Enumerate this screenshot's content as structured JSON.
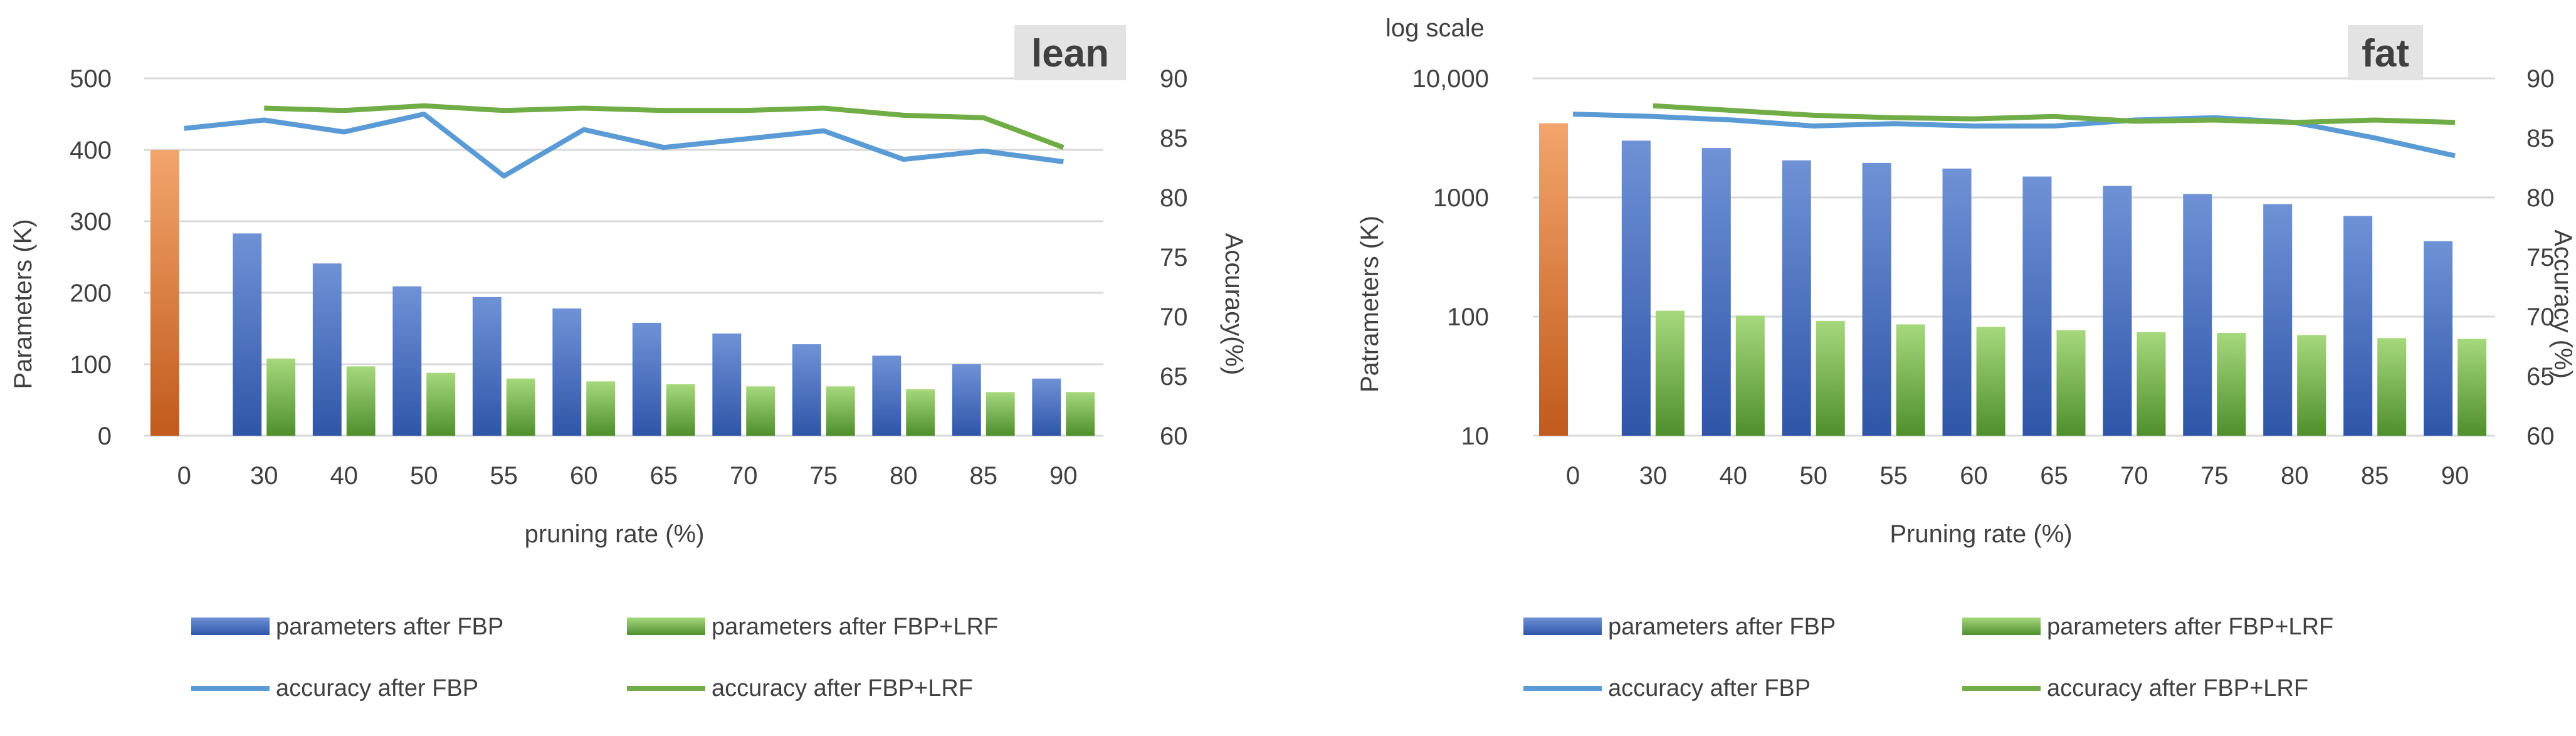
{
  "colors": {
    "fbp_bar_top": "#6f92d6",
    "fbp_bar_bottom": "#2f55a8",
    "lrf_bar_top": "#a6d87d",
    "lrf_bar_bottom": "#4f8f2c",
    "base_bar_top": "#f3a56c",
    "base_bar_bottom": "#c15a1c",
    "fbp_line": "#5b9bd5",
    "lrf_line": "#70ad47",
    "grid": "#d9d9d9",
    "text": "#404040",
    "tag_bg": "#e3e3e3"
  },
  "legend": {
    "params_fbp": "parameters after FBP",
    "params_lrf": "parameters after FBP+LRF",
    "acc_fbp": "accuracy after FBP",
    "acc_lrf": "accuracy after FBP+LRF"
  },
  "chart_data": [
    {
      "type": "bar",
      "combo_with": "line",
      "tag": "lean",
      "scale_note": "",
      "xlabel": "pruning rate (%)",
      "ylabel": "Parameters (K)",
      "y2label": "Accuracy(%)",
      "ylim": [
        0,
        500
      ],
      "y2lim": [
        60,
        90
      ],
      "yticks": [
        "0",
        "100",
        "200",
        "300",
        "400",
        "500"
      ],
      "y2ticks": [
        "60",
        "65",
        "70",
        "75",
        "80",
        "85",
        "90"
      ],
      "yscale": "linear",
      "grid": true,
      "categories": [
        "0",
        "30",
        "40",
        "50",
        "55",
        "60",
        "65",
        "70",
        "75",
        "80",
        "85",
        "90"
      ],
      "base_value": 400,
      "bars_fbp": [
        null,
        283,
        241,
        209,
        194,
        178,
        158,
        143,
        128,
        112,
        100,
        80
      ],
      "bars_lrf": [
        null,
        108,
        97,
        88,
        80,
        76,
        72,
        69,
        69,
        65,
        61,
        61
      ],
      "acc_fbp": [
        85.8,
        86.5,
        85.5,
        87.0,
        81.8,
        85.7,
        84.2,
        84.9,
        85.6,
        83.2,
        83.9,
        83.0
      ],
      "acc_lrf": [
        null,
        87.5,
        87.3,
        87.7,
        87.3,
        87.5,
        87.3,
        87.3,
        87.5,
        86.9,
        86.7,
        84.2
      ]
    },
    {
      "type": "bar",
      "combo_with": "line",
      "tag": "fat",
      "scale_note": "log scale",
      "xlabel": "Pruning rate (%)",
      "ylabel": "Patrameters (K)",
      "y2label": "Accuracy (%)",
      "ylim": [
        10,
        10000
      ],
      "y2lim": [
        60,
        90
      ],
      "yticks": [
        "10",
        "100",
        "1000",
        "10,000"
      ],
      "y2ticks": [
        "60",
        "65",
        "70",
        "75",
        "80",
        "85",
        "90"
      ],
      "yscale": "log",
      "grid": true,
      "categories": [
        "0",
        "30",
        "40",
        "50",
        "55",
        "60",
        "65",
        "70",
        "75",
        "80",
        "85",
        "90"
      ],
      "base_value": 4200,
      "bars_fbp": [
        null,
        3000,
        2600,
        2050,
        1950,
        1750,
        1500,
        1250,
        1070,
        880,
        700,
        430
      ],
      "bars_lrf": [
        null,
        112,
        102,
        92,
        86,
        82,
        77,
        74,
        73,
        70,
        66,
        65
      ],
      "acc_fbp": [
        87.0,
        86.8,
        86.5,
        86.0,
        86.2,
        86.0,
        86.0,
        86.5,
        86.7,
        86.3,
        85.0,
        83.5
      ],
      "acc_lrf": [
        null,
        87.7,
        87.3,
        86.9,
        86.7,
        86.6,
        86.8,
        86.4,
        86.5,
        86.3,
        86.5,
        86.3
      ]
    }
  ]
}
